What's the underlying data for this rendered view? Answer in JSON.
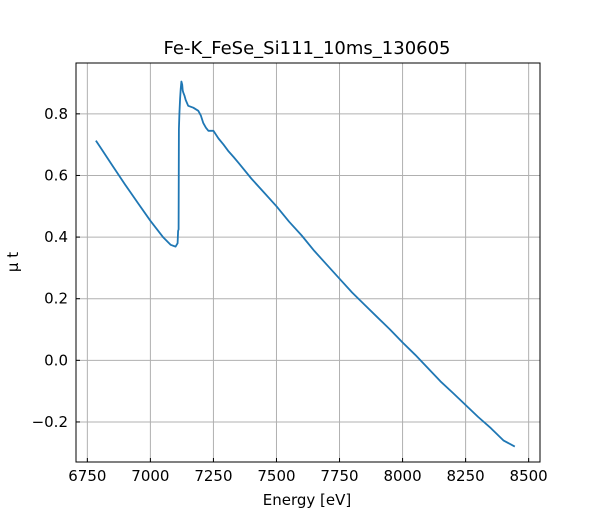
{
  "chart_data": {
    "type": "line",
    "title": "Fe-K_FeSe_Si111_10ms_130605",
    "xlabel": "Energy [eV]",
    "ylabel": "μ t",
    "xlim": [
      6705,
      8545
    ],
    "ylim": [
      -0.33,
      0.965
    ],
    "xticks": [
      6750,
      7000,
      7250,
      7500,
      7750,
      8000,
      8250,
      8500
    ],
    "xtick_labels": [
      "6750",
      "7000",
      "7250",
      "7500",
      "7750",
      "8000",
      "8250",
      "8500"
    ],
    "yticks": [
      -0.2,
      0.0,
      0.2,
      0.4,
      0.6,
      0.8
    ],
    "ytick_labels": [
      "−0.2",
      "0.0",
      "0.2",
      "0.4",
      "0.6",
      "0.8"
    ],
    "grid": true,
    "series": [
      {
        "color": "#1f77b4",
        "x": [
          6784,
          6800,
          6850,
          6900,
          6950,
          7000,
          7050,
          7080,
          7100,
          7108,
          7110,
          7112,
          7113,
          7115,
          7118,
          7120,
          7123,
          7126,
          7128,
          7130,
          7135,
          7140,
          7150,
          7170,
          7190,
          7200,
          7210,
          7220,
          7230,
          7240,
          7250,
          7270,
          7290,
          7310,
          7330,
          7350,
          7400,
          7450,
          7500,
          7550,
          7600,
          7650,
          7700,
          7750,
          7800,
          7850,
          7900,
          7950,
          8000,
          8050,
          8100,
          8150,
          8200,
          8250,
          8300,
          8350,
          8400,
          8445
        ],
        "y": [
          0.713,
          0.693,
          0.631,
          0.57,
          0.511,
          0.453,
          0.4,
          0.375,
          0.369,
          0.38,
          0.42,
          0.425,
          0.75,
          0.8,
          0.85,
          0.88,
          0.905,
          0.895,
          0.876,
          0.87,
          0.86,
          0.845,
          0.826,
          0.82,
          0.81,
          0.795,
          0.77,
          0.755,
          0.745,
          0.745,
          0.745,
          0.72,
          0.7,
          0.678,
          0.66,
          0.64,
          0.59,
          0.545,
          0.5,
          0.45,
          0.405,
          0.355,
          0.31,
          0.265,
          0.22,
          0.18,
          0.14,
          0.1,
          0.058,
          0.018,
          -0.025,
          -0.068,
          -0.106,
          -0.145,
          -0.184,
          -0.22,
          -0.26,
          -0.28
        ]
      }
    ]
  }
}
